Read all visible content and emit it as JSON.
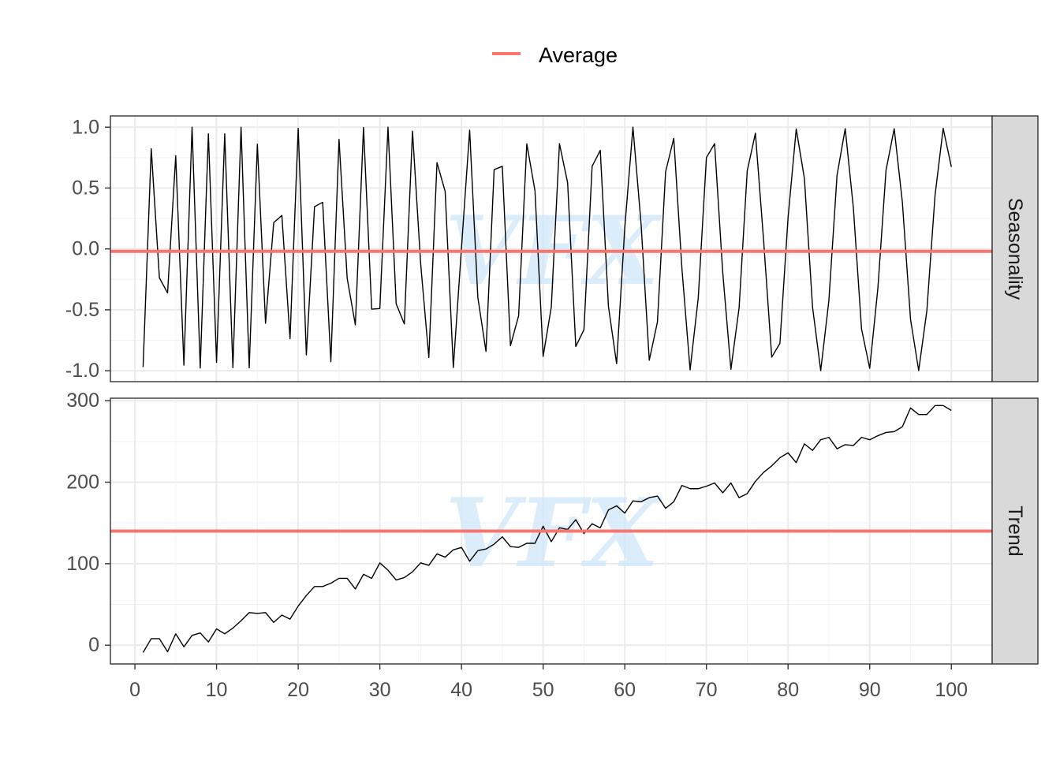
{
  "legend": {
    "label": "Average",
    "color": "#F8766D"
  },
  "watermark": "VFX",
  "chart_data": {
    "type": "line",
    "xlim": [
      -3,
      105
    ],
    "x_ticks": [
      0,
      10,
      20,
      30,
      40,
      50,
      60,
      70,
      80,
      90,
      100
    ],
    "grid": true,
    "legend_position": "top",
    "line_color": "#000000",
    "facets": [
      {
        "strip": "Seasonality",
        "ylim": [
          -1.09,
          1.0923
        ],
        "y_ticks": [
          1.0,
          0.5,
          0.0,
          -0.5,
          -1.0
        ],
        "y_tick_labels": [
          "1.0",
          "0.5",
          "0.0",
          "-0.5",
          "-1.0"
        ],
        "average": -0.02,
        "series_kind": "sine",
        "x_start": 1,
        "x_end": 100
      },
      {
        "strip": "Trend",
        "ylim": [
          -23,
          303
        ],
        "y_ticks": [
          300,
          200,
          100,
          0
        ],
        "y_tick_labels": [
          "300",
          "200",
          "100",
          "0"
        ],
        "average": 140,
        "x": [
          1,
          2,
          3,
          4,
          5,
          6,
          7,
          8,
          9,
          10,
          11,
          12,
          13,
          14,
          15,
          16,
          17,
          18,
          19,
          20,
          21,
          22,
          23,
          24,
          25,
          26,
          27,
          28,
          29,
          30,
          31,
          32,
          33,
          34,
          35,
          36,
          37,
          38,
          39,
          40,
          41,
          42,
          43,
          44,
          45,
          46,
          47,
          48,
          49,
          50,
          51,
          52,
          53,
          54,
          55,
          56,
          57,
          58,
          59,
          60,
          61,
          62,
          63,
          64,
          65,
          66,
          67,
          68,
          69,
          70,
          71,
          72,
          73,
          74,
          75,
          76,
          77,
          78,
          79,
          80,
          81,
          82,
          83,
          84,
          85,
          86,
          87,
          88,
          89,
          90,
          91,
          92,
          93,
          94,
          95,
          96,
          97,
          98,
          99,
          100
        ],
        "values": [
          -9,
          8,
          8,
          -8,
          14,
          -2,
          12,
          15,
          4,
          20,
          14,
          21,
          30,
          40,
          39,
          40,
          28,
          37,
          32,
          48,
          61,
          72,
          72,
          76,
          82,
          82,
          69,
          87,
          82,
          101,
          92,
          80,
          83,
          90,
          101,
          98,
          112,
          108,
          117,
          120,
          103,
          116,
          118,
          124,
          133,
          121,
          120,
          125,
          125,
          146,
          127,
          144,
          142,
          154,
          137,
          149,
          144,
          166,
          171,
          162,
          177,
          176,
          181,
          183,
          168,
          176,
          196,
          192,
          192,
          195,
          199,
          187,
          199,
          181,
          186,
          201,
          212,
          220,
          230,
          236,
          224,
          247,
          239,
          252,
          255,
          241,
          246,
          245,
          255,
          252,
          257,
          261,
          262,
          268,
          291,
          283,
          283,
          294,
          294,
          288
        ]
      }
    ]
  }
}
